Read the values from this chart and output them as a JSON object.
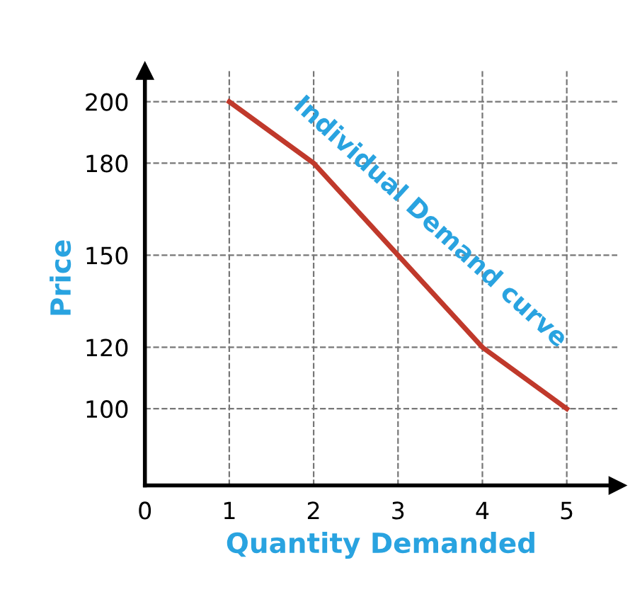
{
  "chart_data": {
    "type": "line",
    "xlabel": "Quantity Demanded",
    "ylabel": "Price",
    "x": [
      1,
      2,
      3,
      4,
      5
    ],
    "series": [
      {
        "name": null,
        "color": "#c0392b",
        "values": [
          200,
          180,
          150,
          120,
          100
        ]
      }
    ],
    "xlim": [
      0,
      5.6
    ],
    "ylim": [
      75,
      210
    ],
    "xticks": [
      0,
      1,
      2,
      3,
      4,
      5
    ],
    "yticks": [
      100,
      120,
      150,
      180,
      200
    ],
    "grid": true,
    "legend": false,
    "marker": "none",
    "line_style": "solid",
    "annotations": [
      "Individual Demand curve"
    ]
  }
}
